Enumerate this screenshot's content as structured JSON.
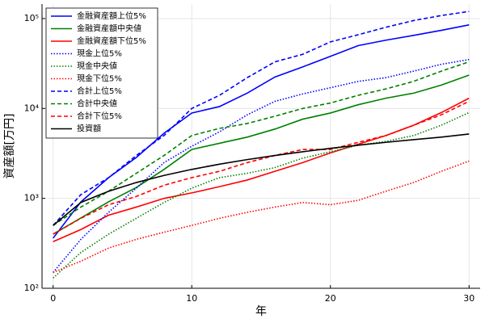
{
  "chart_data": {
    "type": "line",
    "xlabel": "年",
    "ylabel": "資産額[万円]",
    "x": [
      0,
      2,
      4,
      6,
      8,
      10,
      12,
      14,
      16,
      18,
      20,
      22,
      24,
      26,
      28,
      30
    ],
    "xlim": [
      -0.8,
      30.8
    ],
    "xticks": [
      0,
      10,
      20,
      30
    ],
    "ylog": true,
    "ylim": [
      100,
      145000
    ],
    "yticks": [
      {
        "value": 100,
        "label": "10²"
      },
      {
        "value": 1000,
        "label": "10³"
      },
      {
        "value": 10000,
        "label": "10⁴"
      },
      {
        "value": 100000,
        "label": "10⁵"
      }
    ],
    "grid": true,
    "legend": "top-left",
    "series": [
      {
        "name": "金融資産額上位5%",
        "color": "#0000ff",
        "style": "solid",
        "values": [
          361,
          912,
          1700,
          2850,
          5300,
          8900,
          10500,
          14800,
          22400,
          29000,
          38000,
          50000,
          57500,
          65000,
          74000,
          85000
        ]
      },
      {
        "name": "金融資産額中央値",
        "color": "#008000",
        "style": "solid",
        "values": [
          400,
          605,
          915,
          1320,
          2100,
          3500,
          4100,
          4800,
          5900,
          7600,
          8900,
          11000,
          13000,
          14800,
          18200,
          23500
        ]
      },
      {
        "name": "金融資産額下位5%",
        "color": "#ff0000",
        "style": "solid",
        "values": [
          330,
          450,
          650,
          800,
          1000,
          1150,
          1350,
          1600,
          2000,
          2500,
          3200,
          4000,
          5000,
          6500,
          9000,
          13000
        ]
      },
      {
        "name": "現金上位5%",
        "color": "#0000ff",
        "style": "dotted",
        "values": [
          150,
          350,
          700,
          1300,
          2500,
          3800,
          5500,
          8500,
          12000,
          14500,
          17000,
          20000,
          22000,
          26000,
          31000,
          35000
        ]
      },
      {
        "name": "現金中央値",
        "color": "#008000",
        "style": "dotted",
        "values": [
          130,
          250,
          400,
          600,
          900,
          1300,
          1700,
          1900,
          2200,
          2800,
          3300,
          3900,
          4300,
          5000,
          6500,
          9000
        ]
      },
      {
        "name": "現金下位5%",
        "color": "#ff0000",
        "style": "dotted",
        "values": [
          150,
          200,
          280,
          350,
          420,
          500,
          600,
          700,
          800,
          900,
          850,
          950,
          1200,
          1500,
          2000,
          2600
        ]
      },
      {
        "name": "合計上位5%",
        "color": "#0000ff",
        "style": "dashed",
        "values": [
          500,
          1100,
          1700,
          3000,
          5000,
          10000,
          14000,
          22000,
          33000,
          40000,
          55000,
          66000,
          80000,
          95000,
          108000,
          120000
        ]
      },
      {
        "name": "合計中央値",
        "color": "#008000",
        "style": "dashed",
        "values": [
          500,
          800,
          1200,
          1900,
          3000,
          5000,
          6000,
          6800,
          8200,
          10000,
          11500,
          14000,
          16500,
          20000,
          26000,
          33000
        ]
      },
      {
        "name": "合計下位5%",
        "color": "#ff0000",
        "style": "dashed",
        "values": [
          400,
          600,
          850,
          1050,
          1400,
          1700,
          2000,
          2500,
          3000,
          3500,
          3500,
          4200,
          5000,
          6500,
          8500,
          12000
        ]
      },
      {
        "name": "投資額",
        "color": "#000000",
        "style": "solid",
        "values": [
          500,
          900,
          1200,
          1500,
          1800,
          2100,
          2400,
          2700,
          3000,
          3300,
          3600,
          3900,
          4200,
          4500,
          4800,
          5200
        ]
      }
    ]
  }
}
